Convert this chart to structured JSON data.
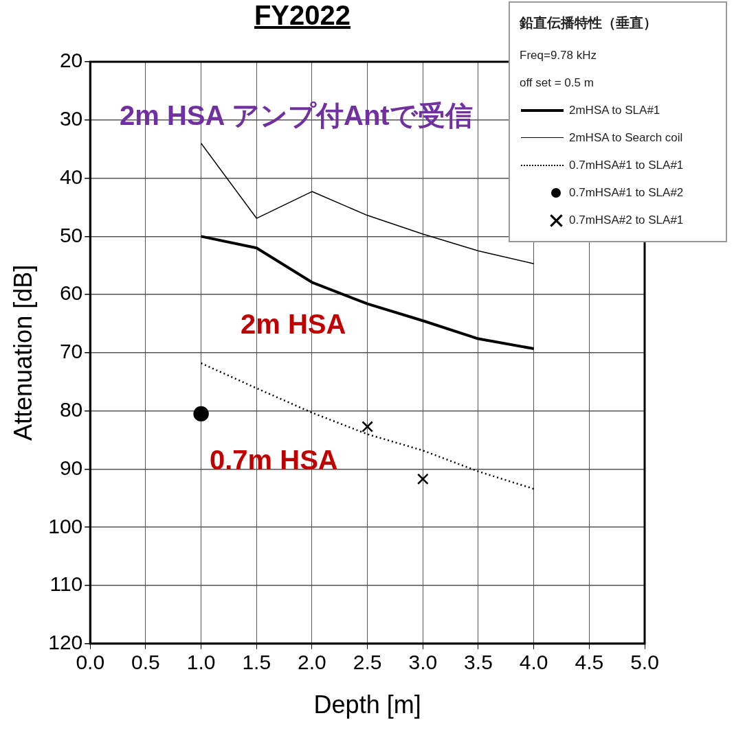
{
  "chart_data": {
    "type": "line",
    "title": "FY2022",
    "xlabel": "Depth [m]",
    "ylabel": "Attenuation [dB]",
    "legend_title": "鉛直伝播特性（垂直）",
    "xlim": [
      0,
      5
    ],
    "xticks": [
      {
        "value": 0,
        "label": "0.0"
      },
      {
        "value": 0.5,
        "label": "0.5"
      },
      {
        "value": 1,
        "label": "1.0"
      },
      {
        "value": 1.5,
        "label": "1.5"
      },
      {
        "value": 2,
        "label": "2.0"
      },
      {
        "value": 2.5,
        "label": "2.5"
      },
      {
        "value": 3,
        "label": "3.0"
      },
      {
        "value": 3.5,
        "label": "3.5"
      },
      {
        "value": 4,
        "label": "4.0"
      },
      {
        "value": 4.5,
        "label": "4.5"
      },
      {
        "value": 5,
        "label": "5.0"
      }
    ],
    "ylim": [
      120,
      20
    ],
    "yticks": [
      20,
      30,
      40,
      50,
      60,
      70,
      80,
      90,
      100,
      110,
      120
    ],
    "grid": true,
    "legend": "top right",
    "series": [
      {
        "name": "2mHSA to SLA#1",
        "type": "line",
        "color": "#000000",
        "marker": "none",
        "line_style": "solid",
        "x": [
          1,
          1.5,
          2,
          2.5,
          3,
          3.5,
          4
        ],
        "values": [
          50,
          52,
          57.9,
          61.6,
          64.5,
          67.6,
          69.3
        ]
      },
      {
        "name": "2mHSA to Search coil",
        "type": "line",
        "color": "#000000",
        "marker": "none",
        "line_style": "solid",
        "x": [
          1,
          1.5,
          2,
          2.5,
          3,
          3.5,
          4
        ],
        "values": [
          34,
          46.9,
          42.3,
          46.4,
          49.6,
          52.5,
          54.7
        ]
      },
      {
        "name": "0.7mHSA#1 to SLA#1",
        "type": "line",
        "color": "#000000",
        "marker": "none",
        "line_style": "dotted",
        "x": [
          1,
          1.5,
          2,
          2.5,
          3,
          3.5,
          4
        ],
        "values": [
          71.8,
          76.1,
          80.3,
          84,
          86.8,
          90.4,
          93.4
        ]
      },
      {
        "name": "0.7mHSA#1 to SLA#2",
        "type": "scatter",
        "color": "#000000",
        "marker": "circle",
        "x": [
          1
        ],
        "values": [
          80.5
        ]
      },
      {
        "name": "0.7mHSA#2 to SLA#1",
        "type": "scatter",
        "color": "#000000",
        "marker": "cross",
        "x": [
          2.5,
          3
        ],
        "values": [
          82.7,
          91.7
        ]
      }
    ],
    "annotations": [
      "Freq=9.78 kHz",
      "off set = 0.5 m",
      "2m HSA アンプ付Antで受信",
      "2m HSA",
      "0.7m HSA"
    ]
  }
}
